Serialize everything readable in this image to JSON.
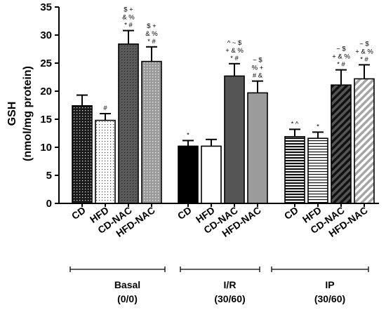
{
  "chart_data": {
    "type": "bar",
    "ylabel_line1": "GSH",
    "ylabel_line2": "(nmol/mg protein)",
    "ylim": [
      0,
      35
    ],
    "yticks": [
      "0",
      "5",
      "10",
      "15",
      "20",
      "25",
      "30",
      "35"
    ],
    "groups": [
      {
        "name_line1": "Basal",
        "name_line2": "(0/0)",
        "bars": [
          {
            "label": "CD",
            "value": 17.4,
            "error": 1.9,
            "pattern": "dots-dark",
            "sig": []
          },
          {
            "label": "HFD",
            "value": 14.8,
            "error": 1.2,
            "pattern": "dots-light",
            "sig": [
              "#"
            ]
          },
          {
            "label": "CD-NAC",
            "value": 28.4,
            "error": 2.4,
            "pattern": "dots-gray",
            "sig": [
              "$ +",
              "& %",
              "* #"
            ]
          },
          {
            "label": "HFD-NAC",
            "value": 25.3,
            "error": 2.6,
            "pattern": "dots-white",
            "sig": [
              "$ +",
              "& %",
              "* #"
            ]
          }
        ]
      },
      {
        "name_line1": "I/R",
        "name_line2": "(30/60)",
        "bars": [
          {
            "label": "CD",
            "value": 10.2,
            "error": 1.0,
            "pattern": "solid-black",
            "sig": [
              "*"
            ]
          },
          {
            "label": "HFD",
            "value": 10.2,
            "error": 1.2,
            "pattern": "solid-white",
            "sig": []
          },
          {
            "label": "CD-NAC",
            "value": 22.7,
            "error": 2.2,
            "pattern": "solid-darkgray",
            "sig": [
              "^ ~ $",
              "+ & %",
              "* #"
            ]
          },
          {
            "label": "HFD-NAC",
            "value": 19.7,
            "error": 2.1,
            "pattern": "solid-gray",
            "sig": [
              "~ $",
              "% +",
              "# &"
            ]
          }
        ]
      },
      {
        "name_line1": "IP",
        "name_line2": "(30/60)",
        "bars": [
          {
            "label": "CD",
            "value": 11.9,
            "error": 1.3,
            "pattern": "hstripes-dark",
            "sig": [
              "* ^"
            ]
          },
          {
            "label": "HFD",
            "value": 11.6,
            "error": 1.1,
            "pattern": "hstripes-light",
            "sig": [
              "*"
            ]
          },
          {
            "label": "CD-NAC",
            "value": 21.1,
            "error": 2.7,
            "pattern": "diag-dark",
            "sig": [
              "~ $",
              "+ & %",
              "* #"
            ]
          },
          {
            "label": "HFD-NAC",
            "value": 22.2,
            "error": 2.5,
            "pattern": "diag-light",
            "sig": [
              "~ $",
              "+ & %",
              "* #"
            ]
          }
        ]
      }
    ]
  }
}
